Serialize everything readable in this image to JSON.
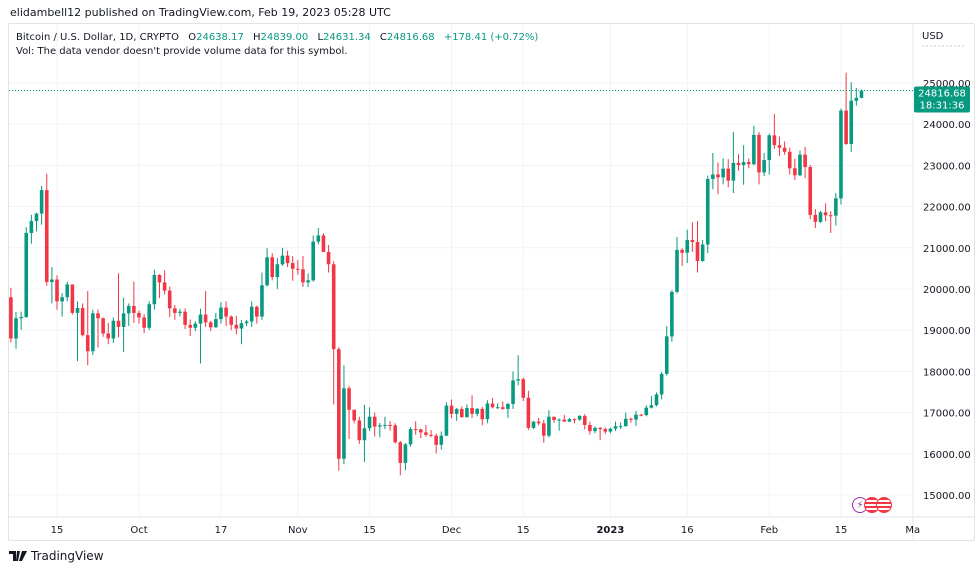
{
  "header": {
    "published": "elidambell12 published on TradingView.com, Feb 19, 2023 05:28 UTC"
  },
  "legend": {
    "symbol": "Bitcoin / U.S. Dollar, 1D, CRYPTO",
    "open_label": "O",
    "open": "24638.17",
    "high_label": "H",
    "high": "24839.00",
    "low_label": "L",
    "low": "24631.34",
    "close_label": "C",
    "close": "24816.68",
    "change": "+178.41 (+0.72%)",
    "volume_note": "Vol: The data vendor doesn't provide volume data for this symbol."
  },
  "price_axis": {
    "currency": "USD",
    "last_price": "24816.68",
    "countdown": "18:31:36"
  },
  "footer": {
    "brand": "TradingView"
  },
  "colors": {
    "up": "#089981",
    "down": "#f23645",
    "grid": "#f0f3fa",
    "events_purple": "#9c27b0",
    "events_red": "#f23645"
  },
  "events": [
    {
      "icon": "lightning-icon"
    },
    {
      "icon": "us-flag-icon"
    },
    {
      "icon": "us-flag-icon"
    }
  ],
  "chart_data": {
    "type": "candlestick",
    "interval": "1D",
    "first_date": "2022-09-06",
    "ylim": [
      14700,
      25600
    ],
    "y_ticks": [
      "15000.00",
      "16000.00",
      "17000.00",
      "18000.00",
      "19000.00",
      "20000.00",
      "21000.00",
      "22000.00",
      "23000.00",
      "24000.00",
      "25000.00"
    ],
    "x_ticks": [
      {
        "label": "15",
        "date": "2022-09-15"
      },
      {
        "label": "Oct",
        "date": "2022-10-01"
      },
      {
        "label": "17",
        "date": "2022-10-17"
      },
      {
        "label": "Nov",
        "date": "2022-11-01"
      },
      {
        "label": "15",
        "date": "2022-11-15"
      },
      {
        "label": "Dec",
        "date": "2022-12-01"
      },
      {
        "label": "15",
        "date": "2022-12-15"
      },
      {
        "label": "2023",
        "date": "2023-01-01",
        "bold": true
      },
      {
        "label": "16",
        "date": "2023-01-16"
      },
      {
        "label": "Feb",
        "date": "2023-02-01"
      },
      {
        "label": "15",
        "date": "2023-02-15"
      },
      {
        "label": "Ma",
        "date": "2023-03-01"
      }
    ],
    "grid": true,
    "ohlc": [
      [
        19800,
        20030,
        18700,
        18800
      ],
      [
        18800,
        19440,
        18550,
        19290
      ],
      [
        19290,
        19450,
        19010,
        19320
      ],
      [
        19320,
        21500,
        19300,
        21360
      ],
      [
        21360,
        21800,
        21100,
        21650
      ],
      [
        21650,
        21850,
        21400,
        21830
      ],
      [
        21830,
        22500,
        21560,
        22400
      ],
      [
        22400,
        22800,
        20080,
        20170
      ],
      [
        20170,
        20530,
        19650,
        20230
      ],
      [
        20230,
        20330,
        19500,
        19700
      ],
      [
        19700,
        19900,
        19330,
        19800
      ],
      [
        19800,
        20180,
        19700,
        20110
      ],
      [
        20110,
        20110,
        19380,
        19420
      ],
      [
        19420,
        19700,
        18250,
        19540
      ],
      [
        19540,
        19650,
        18850,
        18880
      ],
      [
        18880,
        19950,
        18150,
        18490
      ],
      [
        18490,
        19500,
        18400,
        19410
      ],
      [
        19410,
        19500,
        18580,
        19290
      ],
      [
        19290,
        19310,
        18840,
        18920
      ],
      [
        18920,
        19180,
        18660,
        18800
      ],
      [
        18800,
        19310,
        18690,
        19230
      ],
      [
        19230,
        20380,
        18820,
        19080
      ],
      [
        19080,
        19790,
        18470,
        19410
      ],
      [
        19410,
        19650,
        19100,
        19590
      ],
      [
        19590,
        20180,
        19180,
        19420
      ],
      [
        19420,
        19480,
        19160,
        19310
      ],
      [
        19310,
        19390,
        18930,
        19060
      ],
      [
        19060,
        19700,
        19000,
        19630
      ],
      [
        19630,
        20470,
        19500,
        20340
      ],
      [
        20340,
        20360,
        19780,
        20160
      ],
      [
        20160,
        20450,
        19870,
        19960
      ],
      [
        19960,
        20060,
        19320,
        19530
      ],
      [
        19530,
        19610,
        19250,
        19420
      ],
      [
        19420,
        19520,
        19330,
        19450
      ],
      [
        19450,
        19530,
        19030,
        19130
      ],
      [
        19130,
        19260,
        18860,
        19060
      ],
      [
        19060,
        19220,
        18980,
        19160
      ],
      [
        19160,
        19520,
        18190,
        19380
      ],
      [
        19380,
        19950,
        19080,
        19190
      ],
      [
        19190,
        19230,
        18980,
        19070
      ],
      [
        19070,
        19420,
        19060,
        19270
      ],
      [
        19270,
        19680,
        19160,
        19550
      ],
      [
        19550,
        19700,
        19100,
        19330
      ],
      [
        19330,
        19360,
        19000,
        19130
      ],
      [
        19130,
        19350,
        18900,
        19040
      ],
      [
        19040,
        19250,
        18660,
        19170
      ],
      [
        19170,
        19250,
        19100,
        19210
      ],
      [
        19210,
        19700,
        19080,
        19570
      ],
      [
        19570,
        19600,
        19160,
        19330
      ],
      [
        19330,
        20400,
        19250,
        20090
      ],
      [
        20090,
        20990,
        20060,
        20770
      ],
      [
        20770,
        20870,
        20210,
        20290
      ],
      [
        20290,
        20750,
        20000,
        20600
      ],
      [
        20600,
        21000,
        20560,
        20810
      ],
      [
        20810,
        20930,
        20530,
        20630
      ],
      [
        20630,
        20800,
        20200,
        20490
      ],
      [
        20490,
        20700,
        20350,
        20480
      ],
      [
        20480,
        20800,
        20050,
        20160
      ],
      [
        20160,
        20380,
        20050,
        20210
      ],
      [
        20210,
        21300,
        20180,
        21150
      ],
      [
        21150,
        21480,
        21080,
        21300
      ],
      [
        21300,
        21350,
        20900,
        20900
      ],
      [
        20900,
        21070,
        20400,
        20600
      ],
      [
        20600,
        20670,
        17200,
        18540
      ],
      [
        18540,
        18590,
        15590,
        15880
      ],
      [
        15880,
        18150,
        15750,
        17590
      ],
      [
        17590,
        17650,
        16360,
        17070
      ],
      [
        17070,
        17070,
        16740,
        16810
      ],
      [
        16810,
        16900,
        16240,
        16330
      ],
      [
        16330,
        17190,
        15800,
        16620
      ],
      [
        16620,
        17130,
        16550,
        16900
      ],
      [
        16900,
        17000,
        16420,
        16660
      ],
      [
        16660,
        16750,
        16400,
        16690
      ],
      [
        16690,
        16900,
        16600,
        16700
      ],
      [
        16700,
        16800,
        16560,
        16690
      ],
      [
        16690,
        16740,
        16250,
        16280
      ],
      [
        16280,
        16310,
        15480,
        15780
      ],
      [
        15780,
        16260,
        15600,
        16230
      ],
      [
        16230,
        16650,
        16170,
        16600
      ],
      [
        16600,
        16790,
        16460,
        16590
      ],
      [
        16590,
        16610,
        16380,
        16520
      ],
      [
        16520,
        16700,
        16420,
        16460
      ],
      [
        16460,
        16580,
        16400,
        16440
      ],
      [
        16440,
        16490,
        16010,
        16220
      ],
      [
        16220,
        16540,
        16100,
        16440
      ],
      [
        16440,
        17250,
        16430,
        17170
      ],
      [
        17170,
        17320,
        16860,
        16970
      ],
      [
        16970,
        17110,
        16800,
        17090
      ],
      [
        17090,
        17150,
        16870,
        16890
      ],
      [
        16890,
        17200,
        16880,
        17110
      ],
      [
        17110,
        17420,
        16870,
        16970
      ],
      [
        16970,
        17110,
        16910,
        17090
      ],
      [
        17090,
        17140,
        16690,
        16840
      ],
      [
        16840,
        17300,
        16740,
        17220
      ],
      [
        17220,
        17360,
        17100,
        17130
      ],
      [
        17130,
        17230,
        17090,
        17130
      ],
      [
        17130,
        17270,
        17070,
        17090
      ],
      [
        17090,
        17240,
        16870,
        17210
      ],
      [
        17210,
        18000,
        17090,
        17780
      ],
      [
        17780,
        18390,
        17660,
        17810
      ],
      [
        17810,
        17850,
        17280,
        17360
      ],
      [
        17360,
        17530,
        16580,
        16630
      ],
      [
        16630,
        16800,
        16600,
        16780
      ],
      [
        16780,
        16870,
        16690,
        16740
      ],
      [
        16740,
        16820,
        16270,
        16440
      ],
      [
        16440,
        17060,
        16400,
        16900
      ],
      [
        16900,
        16900,
        16750,
        16820
      ],
      [
        16820,
        16860,
        16560,
        16830
      ],
      [
        16830,
        16950,
        16780,
        16780
      ],
      [
        16780,
        16870,
        16780,
        16840
      ],
      [
        16840,
        16860,
        16740,
        16830
      ],
      [
        16830,
        16940,
        16800,
        16920
      ],
      [
        16920,
        16960,
        16590,
        16700
      ],
      [
        16700,
        16780,
        16470,
        16550
      ],
      [
        16550,
        16660,
        16500,
        16630
      ],
      [
        16630,
        16650,
        16330,
        16600
      ],
      [
        16600,
        16640,
        16480,
        16540
      ],
      [
        16540,
        16630,
        16500,
        16610
      ],
      [
        16610,
        16780,
        16550,
        16670
      ],
      [
        16670,
        16760,
        16600,
        16670
      ],
      [
        16670,
        17000,
        16660,
        16850
      ],
      [
        16850,
        16880,
        16750,
        16830
      ],
      [
        16830,
        17040,
        16680,
        16950
      ],
      [
        16950,
        16970,
        16910,
        16940
      ],
      [
        16940,
        17180,
        16910,
        17120
      ],
      [
        17120,
        17400,
        17100,
        17180
      ],
      [
        17180,
        17490,
        17150,
        17440
      ],
      [
        17440,
        17990,
        17320,
        17940
      ],
      [
        17940,
        19100,
        17900,
        18850
      ],
      [
        18850,
        19970,
        18720,
        19930
      ],
      [
        19930,
        21260,
        19890,
        20950
      ],
      [
        20950,
        20990,
        20560,
        20880
      ],
      [
        20880,
        21440,
        20630,
        21190
      ],
      [
        21190,
        21620,
        20900,
        21140
      ],
      [
        21140,
        21650,
        20400,
        20680
      ],
      [
        20680,
        21190,
        20660,
        21080
      ],
      [
        21080,
        22750,
        20870,
        22670
      ],
      [
        22670,
        23300,
        22420,
        22780
      ],
      [
        22780,
        23070,
        22300,
        22710
      ],
      [
        22710,
        23170,
        22540,
        22920
      ],
      [
        22920,
        23150,
        22470,
        22630
      ],
      [
        22630,
        23810,
        22330,
        23060
      ],
      [
        23060,
        23270,
        22870,
        23010
      ],
      [
        23010,
        23490,
        22530,
        23080
      ],
      [
        23080,
        23170,
        22930,
        23030
      ],
      [
        23030,
        23960,
        23000,
        23740
      ],
      [
        23740,
        23810,
        22540,
        22830
      ],
      [
        22830,
        23300,
        22740,
        23130
      ],
      [
        23130,
        23770,
        22780,
        23730
      ],
      [
        23730,
        24250,
        23400,
        23490
      ],
      [
        23490,
        23700,
        23230,
        23430
      ],
      [
        23430,
        23580,
        23260,
        23330
      ],
      [
        23330,
        23430,
        22780,
        22930
      ],
      [
        22930,
        23160,
        22640,
        22760
      ],
      [
        22760,
        23360,
        22740,
        23260
      ],
      [
        23260,
        23450,
        22690,
        22960
      ],
      [
        22960,
        23010,
        21700,
        21800
      ],
      [
        21800,
        21940,
        21480,
        21630
      ],
      [
        21630,
        21900,
        21600,
        21860
      ],
      [
        21860,
        22080,
        21650,
        21790
      ],
      [
        21790,
        21890,
        21360,
        21780
      ],
      [
        21780,
        22330,
        21540,
        22200
      ],
      [
        22200,
        24380,
        22050,
        24330
      ],
      [
        24330,
        25250,
        23500,
        23520
      ],
      [
        23520,
        25020,
        23330,
        24570
      ],
      [
        24570,
        24880,
        24450,
        24640
      ],
      [
        24638.17,
        24839.0,
        24631.34,
        24816.68
      ]
    ]
  }
}
